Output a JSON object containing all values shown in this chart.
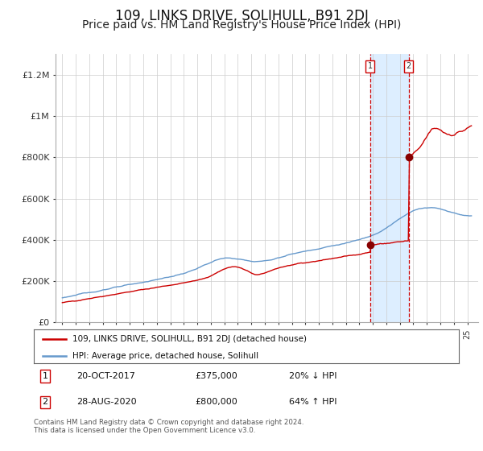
{
  "title": "109, LINKS DRIVE, SOLIHULL, B91 2DJ",
  "subtitle": "Price paid vs. HM Land Registry's House Price Index (HPI)",
  "footer": "Contains HM Land Registry data © Crown copyright and database right 2024.\nThis data is licensed under the Open Government Licence v3.0.",
  "legend_line1": "109, LINKS DRIVE, SOLIHULL, B91 2DJ (detached house)",
  "legend_line2": "HPI: Average price, detached house, Solihull",
  "transaction1_date": "20-OCT-2017",
  "transaction1_price": 375000,
  "transaction1_hpi_text": "20% ↓ HPI",
  "transaction2_date": "28-AUG-2020",
  "transaction2_price": 800000,
  "transaction2_hpi_text": "64% ↑ HPI",
  "transaction1_year": 2017.8,
  "transaction2_year": 2020.65,
  "hpi_color": "#6699cc",
  "price_color": "#cc0000",
  "marker_color": "#880000",
  "dashed_color": "#cc0000",
  "shaded_color": "#ddeeff",
  "background_color": "#ffffff",
  "grid_color": "#cccccc",
  "ylim": [
    0,
    1300000
  ],
  "xlim_start": 1994.5,
  "xlim_end": 2025.8,
  "title_fontsize": 12,
  "subtitle_fontsize": 10
}
